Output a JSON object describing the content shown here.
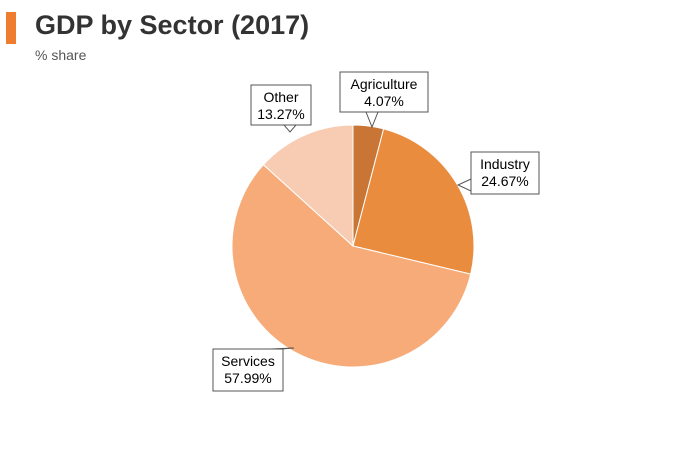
{
  "header": {
    "title": "GDP by Sector (2017)",
    "subtitle": "% share",
    "accent_color": "#ee7d2f"
  },
  "chart_data": {
    "type": "pie",
    "title": "GDP by Sector (2017)",
    "subtitle": "% share",
    "start_angle_deg": 0,
    "direction": "clockwise",
    "slices": [
      {
        "label": "Agriculture",
        "value": 4.07,
        "value_label": "4.07%",
        "color": "#c97535"
      },
      {
        "label": "Industry",
        "value": 24.67,
        "value_label": "24.67%",
        "color": "#e98c3e"
      },
      {
        "label": "Services",
        "value": 57.99,
        "value_label": "57.99%",
        "color": "#f7ab79"
      },
      {
        "label": "Other",
        "value": 13.27,
        "value_label": "13.27%",
        "color": "#f8ccb3"
      }
    ]
  }
}
